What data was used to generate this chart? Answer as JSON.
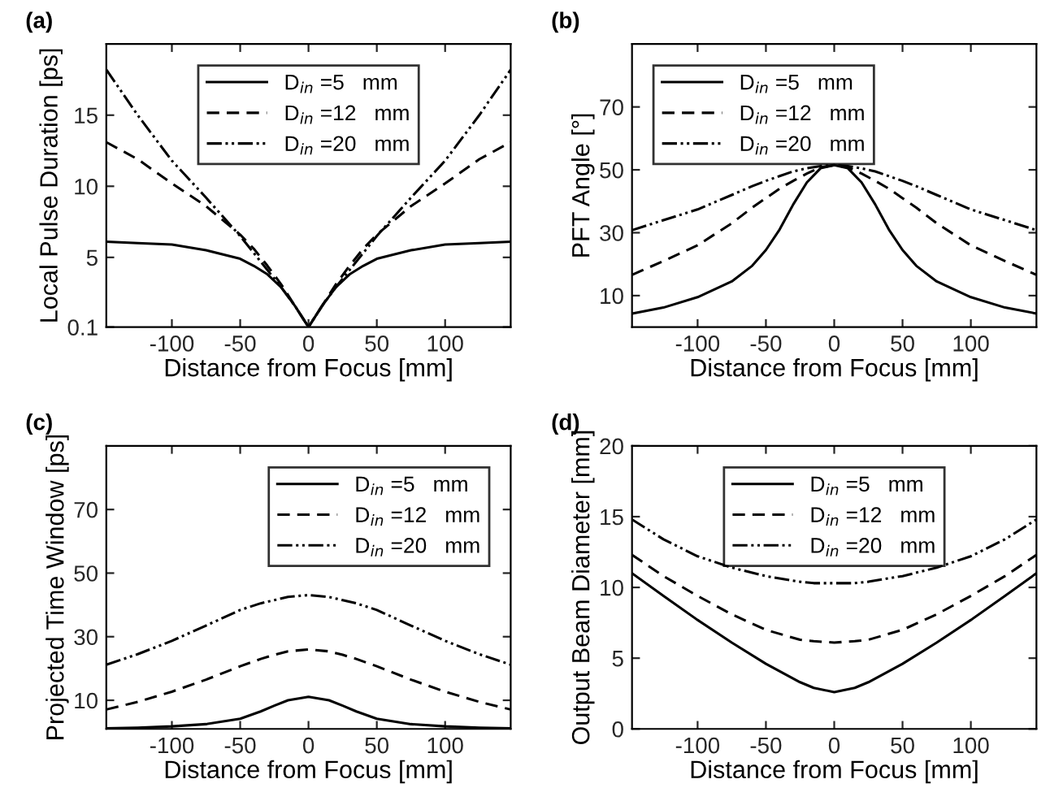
{
  "chart_data": [
    {
      "type": "line",
      "title": "(a)",
      "xlabel": "Distance from Focus [mm]",
      "ylabel": "Local Pulse Duration [ps]",
      "xlim": [
        -148,
        148
      ],
      "xticks": [
        -100,
        -50,
        0,
        50,
        100
      ],
      "ylim": [
        0.1,
        20
      ],
      "yticks": [
        0.1,
        5,
        10,
        15
      ],
      "grid": false,
      "legend": "top",
      "marker": "none",
      "x": [
        -148,
        -125,
        -100,
        -75,
        -50,
        -40,
        -30,
        -20,
        -10,
        0,
        10,
        20,
        30,
        40,
        50,
        75,
        100,
        125,
        148
      ],
      "series": [
        {
          "name": "D$_{in}$ =5   mm",
          "color": "#000000",
          "line_style": "solid",
          "values": [
            6.1,
            6.0,
            5.9,
            5.5,
            4.9,
            4.4,
            3.8,
            2.9,
            1.6,
            0.1,
            1.6,
            2.9,
            3.8,
            4.4,
            4.9,
            5.5,
            5.9,
            6.0,
            6.1
          ]
        },
        {
          "name": "D$_{in}$ =12   mm",
          "color": "#000000",
          "line_style": "dashed",
          "values": [
            13.1,
            11.9,
            10.2,
            8.6,
            6.6,
            5.6,
            4.4,
            3.1,
            1.6,
            0.1,
            1.6,
            3.1,
            4.4,
            5.6,
            6.6,
            8.6,
            10.2,
            11.9,
            13.1
          ]
        },
        {
          "name": "D$_{in}$ =20   mm",
          "color": "#000000",
          "line_style": "dashdot",
          "values": [
            18.2,
            15.0,
            11.8,
            9.2,
            6.5,
            5.3,
            4.1,
            2.9,
            1.6,
            0.1,
            1.6,
            2.9,
            4.1,
            5.3,
            6.5,
            9.2,
            11.8,
            15.0,
            18.2
          ]
        }
      ]
    },
    {
      "type": "line",
      "title": "(b)",
      "xlabel": "Distance from Focus [mm]",
      "ylabel": "PFT Angle [°]",
      "xlim": [
        -148,
        148
      ],
      "xticks": [
        -100,
        -50,
        0,
        50,
        100
      ],
      "ylim": [
        0,
        90
      ],
      "yticks": [
        10,
        30,
        50,
        70
      ],
      "grid": false,
      "legend": "top left",
      "marker": "none",
      "x": [
        -148,
        -125,
        -100,
        -75,
        -60,
        -50,
        -40,
        -30,
        -20,
        -10,
        0,
        10,
        20,
        30,
        40,
        50,
        60,
        75,
        100,
        125,
        148
      ],
      "series": [
        {
          "name": "D$_{in}$ =5   mm",
          "color": "#000000",
          "line_style": "solid",
          "values": [
            4.3,
            6.2,
            9.5,
            14.5,
            19.5,
            24.5,
            31,
            39,
            46,
            50.5,
            51.5,
            50.5,
            46,
            39,
            31,
            24.5,
            19.5,
            14.5,
            9.5,
            6.2,
            4.3
          ]
        },
        {
          "name": "D$_{in}$ =12   mm",
          "color": "#000000",
          "line_style": "dashed",
          "values": [
            16.6,
            21,
            26,
            33,
            38,
            41,
            44,
            46.5,
            48.8,
            50.8,
            51.5,
            50.8,
            48.8,
            46.5,
            44,
            41,
            38,
            33,
            26,
            21,
            16.6
          ]
        },
        {
          "name": "D$_{in}$ =20   mm",
          "color": "#000000",
          "line_style": "dashdot",
          "values": [
            30.8,
            34,
            37.4,
            42,
            44.8,
            46.5,
            48,
            49.5,
            50.5,
            51.2,
            51.5,
            51.2,
            50.5,
            49.5,
            48,
            46.5,
            44.8,
            42,
            37.4,
            34,
            30.8
          ]
        }
      ]
    },
    {
      "type": "line",
      "title": "(c)",
      "xlabel": "Distance from Focus [mm]",
      "ylabel": "Projected Time Window [ps]",
      "xlim": [
        -148,
        148
      ],
      "xticks": [
        -100,
        -50,
        0,
        50,
        100
      ],
      "ylim": [
        1,
        90
      ],
      "yticks": [
        10,
        30,
        50,
        70
      ],
      "grid": false,
      "legend": "top right",
      "marker": "none",
      "x": [
        -148,
        -125,
        -100,
        -75,
        -50,
        -35,
        -25,
        -15,
        0,
        15,
        25,
        35,
        50,
        75,
        100,
        125,
        148
      ],
      "series": [
        {
          "name": "D$_{in}$ =5   mm",
          "color": "#000000",
          "line_style": "solid",
          "values": [
            1.2,
            1.4,
            1.8,
            2.5,
            4.2,
            6.5,
            8.3,
            10,
            11.1,
            10,
            8.3,
            6.5,
            4.2,
            2.5,
            1.8,
            1.4,
            1.2
          ]
        },
        {
          "name": "D$_{in}$ =12   mm",
          "color": "#000000",
          "line_style": "dashed",
          "values": [
            7.1,
            9.5,
            12.7,
            16.5,
            20.7,
            23,
            24.3,
            25.4,
            26,
            25.4,
            24.3,
            23,
            20.7,
            16.5,
            12.7,
            9.5,
            7.1
          ]
        },
        {
          "name": "D$_{in}$ =20   mm",
          "color": "#000000",
          "line_style": "dashdot",
          "values": [
            21.2,
            24.5,
            28.7,
            33.5,
            38.4,
            40.5,
            41.5,
            42.5,
            43.1,
            42.5,
            41.5,
            40.5,
            38.4,
            33.5,
            28.7,
            24.5,
            21.2
          ]
        }
      ]
    },
    {
      "type": "line",
      "title": "(d)",
      "xlabel": "Distance from Focus [mm]",
      "ylabel": "Output Beam Diameter [mm]",
      "xlim": [
        -148,
        148
      ],
      "xticks": [
        -100,
        -50,
        0,
        50,
        100
      ],
      "ylim": [
        0,
        20
      ],
      "yticks": [
        0,
        5,
        10,
        15,
        20
      ],
      "grid": false,
      "legend": "top",
      "marker": "none",
      "x": [
        -148,
        -125,
        -100,
        -75,
        -50,
        -25,
        -15,
        0,
        15,
        25,
        50,
        75,
        100,
        125,
        148
      ],
      "series": [
        {
          "name": "D$_{in}$ =5   mm",
          "color": "#000000",
          "line_style": "solid",
          "values": [
            11.0,
            9.4,
            7.7,
            6.1,
            4.6,
            3.3,
            2.9,
            2.6,
            2.9,
            3.3,
            4.6,
            6.1,
            7.7,
            9.4,
            11.0
          ]
        },
        {
          "name": "D$_{in}$ =12   mm",
          "color": "#000000",
          "line_style": "dashed",
          "values": [
            12.3,
            10.8,
            9.4,
            8.1,
            7.0,
            6.3,
            6.2,
            6.1,
            6.2,
            6.3,
            7.0,
            8.1,
            9.4,
            10.8,
            12.3
          ]
        },
        {
          "name": "D$_{in}$ =20   mm",
          "color": "#000000",
          "line_style": "dashdot",
          "values": [
            14.8,
            13.4,
            12.2,
            11.4,
            10.8,
            10.4,
            10.3,
            10.3,
            10.3,
            10.4,
            10.8,
            11.4,
            12.2,
            13.4,
            14.8
          ]
        }
      ]
    }
  ]
}
